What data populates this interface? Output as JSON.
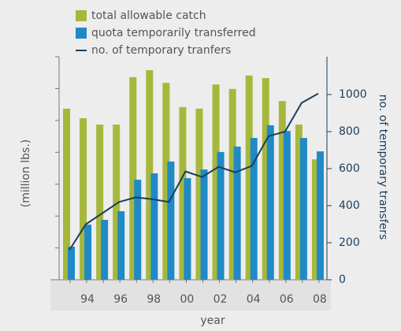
{
  "chart_data": {
    "type": "bar",
    "x_label": "year",
    "y_label": "(million lbs.)",
    "y2_label": "no. of temporary transfers",
    "categories": [
      null,
      "94",
      null,
      "96",
      null,
      "98",
      null,
      "00",
      null,
      "02",
      null,
      "04",
      null,
      "06",
      null,
      "08"
    ],
    "ylim": [
      0,
      7
    ],
    "yticks": [
      0,
      1,
      2,
      3,
      4,
      5,
      6,
      7
    ],
    "y2lim": [
      0,
      1204
    ],
    "y2ticks": [
      0,
      200,
      400,
      600,
      800,
      1000
    ],
    "series": [
      {
        "name": "total allowable catch",
        "color": "#a6b83b",
        "type": "bar",
        "values": [
          5.37,
          5.07,
          4.87,
          4.87,
          6.36,
          6.58,
          6.18,
          5.42,
          5.37,
          6.13,
          5.99,
          6.41,
          6.33,
          5.61,
          4.87,
          3.78
        ]
      },
      {
        "name": "quota temporarily transferred",
        "color": "#1f8ac6",
        "type": "bar",
        "values": [
          1.04,
          1.73,
          1.88,
          2.15,
          3.14,
          3.34,
          3.71,
          3.19,
          3.46,
          4.01,
          4.18,
          4.45,
          4.85,
          4.67,
          4.45,
          4.03
        ]
      },
      {
        "name": "no. of temporary tranfers",
        "color": "#1b3d5c",
        "type": "line",
        "axis": "y2",
        "values": [
          160,
          300,
          360,
          420,
          445,
          435,
          420,
          585,
          555,
          610,
          580,
          615,
          775,
          800,
          955,
          1005
        ]
      }
    ]
  }
}
